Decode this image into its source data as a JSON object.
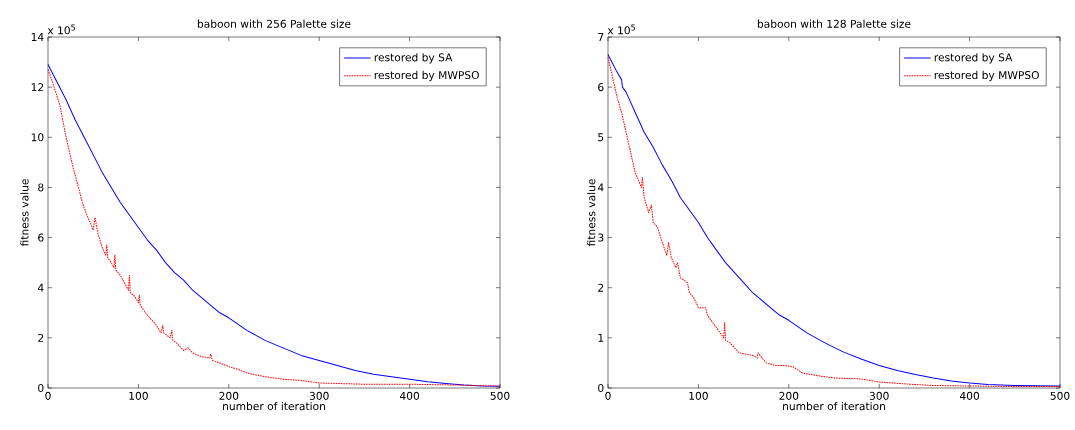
{
  "chart_data": [
    {
      "type": "line",
      "title": "baboon with 256 Palette size",
      "xlabel": "number of iteration",
      "ylabel": "fitness value",
      "annotations": [
        "x 10$^{5}$"
      ],
      "xlim": [
        0,
        500
      ],
      "ylim": [
        0,
        14
      ],
      "xticks": [
        0,
        100,
        200,
        300,
        400,
        500
      ],
      "yticks": [
        0,
        2,
        4,
        6,
        8,
        10,
        12,
        14
      ],
      "legend": "top right",
      "grid": false,
      "marker": "none",
      "series": [
        {
          "name": "restored by SA",
          "color": "#0000ff",
          "line_style": "solid",
          "x": [
            0,
            10,
            20,
            30,
            40,
            50,
            60,
            70,
            80,
            90,
            100,
            110,
            120,
            130,
            140,
            150,
            160,
            170,
            180,
            190,
            200,
            220,
            240,
            260,
            280,
            300,
            320,
            340,
            360,
            380,
            400,
            420,
            440,
            460,
            480,
            500
          ],
          "values": [
            12.9,
            12.2,
            11.5,
            10.7,
            10.0,
            9.3,
            8.6,
            8.0,
            7.4,
            6.9,
            6.4,
            5.9,
            5.5,
            5.0,
            4.6,
            4.3,
            3.9,
            3.6,
            3.3,
            3.0,
            2.8,
            2.3,
            1.9,
            1.6,
            1.3,
            1.1,
            0.9,
            0.7,
            0.55,
            0.45,
            0.35,
            0.25,
            0.18,
            0.12,
            0.08,
            0.07
          ]
        },
        {
          "name": "restored by MWPSO",
          "color": "#ff0000",
          "line_style": "dotted",
          "x": [
            0,
            5,
            13,
            20,
            27,
            33,
            38,
            43,
            48,
            50,
            52,
            55,
            60,
            64,
            65,
            66,
            70,
            73,
            74,
            75,
            80,
            89,
            90,
            91,
            95,
            100,
            101,
            102,
            110,
            120,
            125,
            127,
            128,
            135,
            137,
            138,
            142,
            150,
            155,
            160,
            170,
            179,
            180,
            182,
            190,
            200,
            210,
            220,
            240,
            260,
            280,
            300,
            320,
            350,
            400,
            450,
            500
          ],
          "values": [
            12.7,
            12.2,
            11.3,
            10.0,
            8.9,
            8.1,
            7.4,
            6.9,
            6.5,
            6.3,
            6.8,
            6.2,
            5.6,
            5.3,
            5.7,
            5.2,
            5.0,
            4.8,
            5.3,
            4.7,
            4.5,
            3.9,
            4.5,
            3.8,
            3.7,
            3.4,
            3.7,
            3.3,
            2.9,
            2.5,
            2.2,
            2.5,
            2.2,
            2.0,
            2.3,
            1.9,
            1.8,
            1.5,
            1.6,
            1.4,
            1.25,
            1.2,
            1.35,
            1.1,
            1.0,
            0.85,
            0.75,
            0.6,
            0.45,
            0.35,
            0.3,
            0.2,
            0.18,
            0.15,
            0.15,
            0.12,
            0.08
          ]
        }
      ]
    },
    {
      "type": "line",
      "title": "baboon with 128 Palette size",
      "xlabel": "number of iteration",
      "ylabel": "fitness value",
      "annotations": [
        "x 10$^{5}$"
      ],
      "xlim": [
        0,
        500
      ],
      "ylim": [
        0,
        7
      ],
      "xticks": [
        0,
        100,
        200,
        300,
        400,
        500
      ],
      "yticks": [
        0,
        1,
        2,
        3,
        4,
        5,
        6,
        7
      ],
      "legend": "top right",
      "grid": false,
      "marker": "none",
      "series": [
        {
          "name": "restored by SA",
          "color": "#0000ff",
          "line_style": "solid",
          "x": [
            0,
            10,
            15,
            16,
            20,
            30,
            40,
            50,
            60,
            70,
            80,
            90,
            100,
            110,
            120,
            130,
            140,
            150,
            160,
            170,
            180,
            190,
            200,
            220,
            240,
            260,
            280,
            300,
            320,
            340,
            360,
            380,
            400,
            420,
            450,
            500
          ],
          "values": [
            6.65,
            6.3,
            6.15,
            6.0,
            5.9,
            5.5,
            5.1,
            4.8,
            4.45,
            4.15,
            3.8,
            3.55,
            3.3,
            3.0,
            2.75,
            2.5,
            2.3,
            2.1,
            1.9,
            1.75,
            1.6,
            1.45,
            1.35,
            1.1,
            0.9,
            0.72,
            0.58,
            0.45,
            0.35,
            0.27,
            0.2,
            0.14,
            0.1,
            0.07,
            0.05,
            0.04
          ]
        },
        {
          "name": "restored by MWPSO",
          "color": "#ff0000",
          "line_style": "dotted",
          "x": [
            0,
            5,
            10,
            15,
            20,
            25,
            30,
            37,
            38,
            40,
            45,
            48,
            50,
            55,
            60,
            65,
            67,
            70,
            75,
            77,
            80,
            88,
            90,
            95,
            100,
            108,
            110,
            120,
            128,
            129,
            130,
            135,
            145,
            160,
            165,
            166,
            175,
            185,
            195,
            205,
            215,
            230,
            250,
            280,
            300,
            330,
            360,
            400,
            450,
            500
          ],
          "values": [
            6.6,
            6.2,
            5.8,
            5.5,
            5.1,
            4.7,
            4.3,
            4.0,
            4.2,
            3.8,
            3.5,
            3.65,
            3.3,
            3.2,
            2.9,
            2.65,
            2.9,
            2.6,
            2.4,
            2.5,
            2.2,
            2.1,
            1.9,
            1.8,
            1.6,
            1.6,
            1.45,
            1.2,
            1.0,
            1.3,
            0.95,
            0.9,
            0.7,
            0.65,
            0.6,
            0.7,
            0.5,
            0.45,
            0.45,
            0.42,
            0.3,
            0.25,
            0.2,
            0.18,
            0.12,
            0.08,
            0.05,
            0.04,
            0.03,
            0.03
          ]
        }
      ]
    }
  ]
}
